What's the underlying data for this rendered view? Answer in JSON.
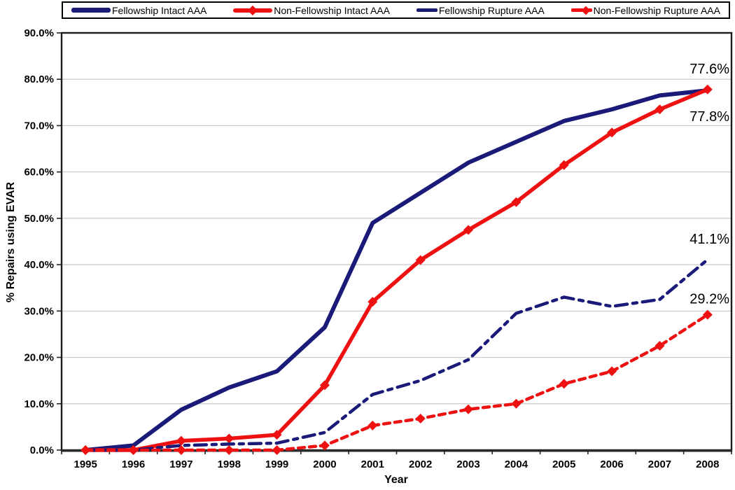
{
  "chart_data": {
    "type": "line",
    "xlabel": "Year",
    "ylabel": "% Repairs using EVAR",
    "categories": [
      "1995",
      "1996",
      "1997",
      "1998",
      "1999",
      "2000",
      "2001",
      "2002",
      "2003",
      "2004",
      "2005",
      "2006",
      "2007",
      "2008"
    ],
    "ylim": [
      0,
      90
    ],
    "ytick_step": 10,
    "yticks": [
      "0.0%",
      "10.0%",
      "20.0%",
      "30.0%",
      "40.0%",
      "50.0%",
      "60.0%",
      "70.0%",
      "80.0%",
      "90.0%"
    ],
    "grid": true,
    "legend_position": "top",
    "series": [
      {
        "name": "Fellowship Intact AAA",
        "color": "#1a1a78",
        "style": "solid",
        "marker": "none",
        "width": 6,
        "values": [
          0,
          1,
          8.7,
          13.5,
          17,
          26.5,
          49,
          55.5,
          62,
          66.5,
          71,
          73.5,
          76.5,
          77.6
        ]
      },
      {
        "name": "Non-Fellowship Intact AAA",
        "color": "#ee1111",
        "style": "solid",
        "marker": "diamond",
        "width": 5.5,
        "values": [
          0,
          0,
          2,
          2.5,
          3.3,
          14,
          32,
          41,
          47.5,
          53.5,
          61.5,
          68.5,
          73.5,
          77.8
        ]
      },
      {
        "name": "Fellowship Rupture AAA",
        "color": "#1a1a78",
        "style": "dashdot",
        "marker": "none",
        "width": 4.5,
        "values": [
          0,
          0,
          1,
          1.3,
          1.5,
          3.8,
          12,
          15,
          19.5,
          29.5,
          33,
          31,
          32.5,
          41.1
        ]
      },
      {
        "name": "Non-Fellowship Rupture AAA",
        "color": "#ee1111",
        "style": "dash",
        "marker": "diamond",
        "width": 4.5,
        "values": [
          0,
          0,
          0,
          0,
          0,
          1,
          5.3,
          6.8,
          8.8,
          10,
          14.3,
          17,
          22.5,
          29.2
        ]
      }
    ],
    "annotations": [
      {
        "text": "77.6%",
        "series": 0,
        "dy": -24
      },
      {
        "text": "77.8%",
        "series": 1,
        "dy": 45
      },
      {
        "text": "41.1%",
        "series": 2,
        "dy": -23
      },
      {
        "text": "29.2%",
        "series": 3,
        "dy": -16
      }
    ]
  }
}
